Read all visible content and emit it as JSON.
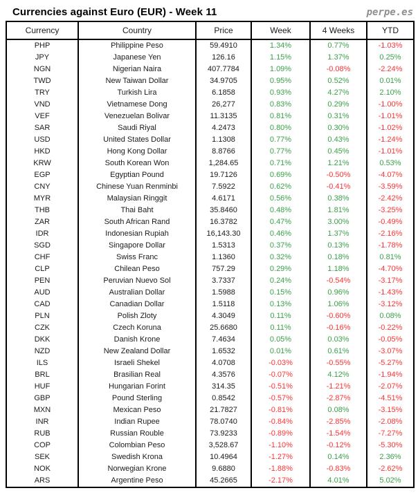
{
  "header": {
    "title": "Currencies against Euro (EUR) - Week 11",
    "brand": "perpe.es"
  },
  "colors": {
    "positive": "#3aa049",
    "negative": "#ff3333",
    "text": "#1a1a1a",
    "border": "#000000",
    "brand_gray": "#8f8f8f"
  },
  "chart_data": {
    "type": "table",
    "title": "Currencies against Euro (EUR) - Week 11",
    "columns": [
      "Currency",
      "Country",
      "Price",
      "Week",
      "4 Weeks",
      "YTD"
    ],
    "rows": [
      [
        "PHP",
        "Philippine Peso",
        "59.4910",
        "1.34%",
        "0.77%",
        "-1.03%"
      ],
      [
        "JPY",
        "Japanese Yen",
        "126.16",
        "1.15%",
        "1.37%",
        "0.25%"
      ],
      [
        "NGN",
        "Nigerian Naira",
        "407.7784",
        "1.09%",
        "-0.08%",
        "-2.24%"
      ],
      [
        "TWD",
        "New Taiwan Dollar",
        "34.9705",
        "0.95%",
        "0.52%",
        "0.01%"
      ],
      [
        "TRY",
        "Turkish Lira",
        "6.1858",
        "0.93%",
        "4.27%",
        "2.10%"
      ],
      [
        "VND",
        "Vietnamese Dong",
        "26,277",
        "0.83%",
        "0.29%",
        "-1.00%"
      ],
      [
        "VEF",
        "Venezuelan Bolivar",
        "11.3135",
        "0.81%",
        "0.31%",
        "-1.01%"
      ],
      [
        "SAR",
        "Saudi Riyal",
        "4.2473",
        "0.80%",
        "0.30%",
        "-1.02%"
      ],
      [
        "USD",
        "United States Dollar",
        "1.1308",
        "0.77%",
        "0.43%",
        "-1.24%"
      ],
      [
        "HKD",
        "Hong Kong Dollar",
        "8.8766",
        "0.77%",
        "0.45%",
        "-1.01%"
      ],
      [
        "KRW",
        "South Korean Won",
        "1,284.65",
        "0.71%",
        "1.21%",
        "0.53%"
      ],
      [
        "EGP",
        "Egyptian Pound",
        "19.7126",
        "0.69%",
        "-0.50%",
        "-4.07%"
      ],
      [
        "CNY",
        "Chinese Yuan Renminbi",
        "7.5922",
        "0.62%",
        "-0.41%",
        "-3.59%"
      ],
      [
        "MYR",
        "Malaysian Ringgit",
        "4.6171",
        "0.56%",
        "0.38%",
        "-2.42%"
      ],
      [
        "THB",
        "Thai Baht",
        "35.8460",
        "0.48%",
        "1.81%",
        "-3.25%"
      ],
      [
        "ZAR",
        "South African Rand",
        "16.3782",
        "0.47%",
        "3.00%",
        "-0.49%"
      ],
      [
        "IDR",
        "Indonesian Rupiah",
        "16,143.30",
        "0.46%",
        "1.37%",
        "-2.16%"
      ],
      [
        "SGD",
        "Singapore Dollar",
        "1.5313",
        "0.37%",
        "0.13%",
        "-1.78%"
      ],
      [
        "CHF",
        "Swiss Franc",
        "1.1360",
        "0.32%",
        "0.18%",
        "0.81%"
      ],
      [
        "CLP",
        "Chilean Peso",
        "757.29",
        "0.29%",
        "1.18%",
        "-4.70%"
      ],
      [
        "PEN",
        "Peruvian Nuevo Sol",
        "3.7337",
        "0.24%",
        "-0.54%",
        "-3.17%"
      ],
      [
        "AUD",
        "Australian Dollar",
        "1.5988",
        "0.15%",
        "0.96%",
        "-1.43%"
      ],
      [
        "CAD",
        "Canadian Dollar",
        "1.5118",
        "0.13%",
        "1.06%",
        "-3.12%"
      ],
      [
        "PLN",
        "Polish Zloty",
        "4.3049",
        "0.11%",
        "-0.60%",
        "0.08%"
      ],
      [
        "CZK",
        "Czech Koruna",
        "25.6680",
        "0.11%",
        "-0.16%",
        "-0.22%"
      ],
      [
        "DKK",
        "Danish Krone",
        "7.4634",
        "0.05%",
        "0.03%",
        "-0.05%"
      ],
      [
        "NZD",
        "New Zealand Dollar",
        "1.6532",
        "0.01%",
        "0.61%",
        "-3.07%"
      ],
      [
        "ILS",
        "Israeli Shekel",
        "4.0708",
        "-0.03%",
        "-0.55%",
        "-5.27%"
      ],
      [
        "BRL",
        "Brasilian Real",
        "4.3576",
        "-0.07%",
        "4.12%",
        "-1.94%"
      ],
      [
        "HUF",
        "Hungarian Forint",
        "314.35",
        "-0.51%",
        "-1.21%",
        "-2.07%"
      ],
      [
        "GBP",
        "Pound Sterling",
        "0.8542",
        "-0.57%",
        "-2.87%",
        "-4.51%"
      ],
      [
        "MXN",
        "Mexican Peso",
        "21.7827",
        "-0.81%",
        "0.08%",
        "-3.15%"
      ],
      [
        "INR",
        "Indian Rupee",
        "78.0740",
        "-0.84%",
        "-2.85%",
        "-2.08%"
      ],
      [
        "RUB",
        "Russian Rouble",
        "73.9233",
        "-0.89%",
        "-1.54%",
        "-7.27%"
      ],
      [
        "COP",
        "Colombian Peso",
        "3,528.67",
        "-1.10%",
        "-0.12%",
        "-5.30%"
      ],
      [
        "SEK",
        "Swedish Krona",
        "10.4964",
        "-1.27%",
        "0.14%",
        "2.36%"
      ],
      [
        "NOK",
        "Norwegian Krone",
        "9.6880",
        "-1.88%",
        "-0.83%",
        "-2.62%"
      ],
      [
        "ARS",
        "Argentine Peso",
        "45.2665",
        "-2.17%",
        "4.01%",
        "5.02%"
      ]
    ]
  }
}
